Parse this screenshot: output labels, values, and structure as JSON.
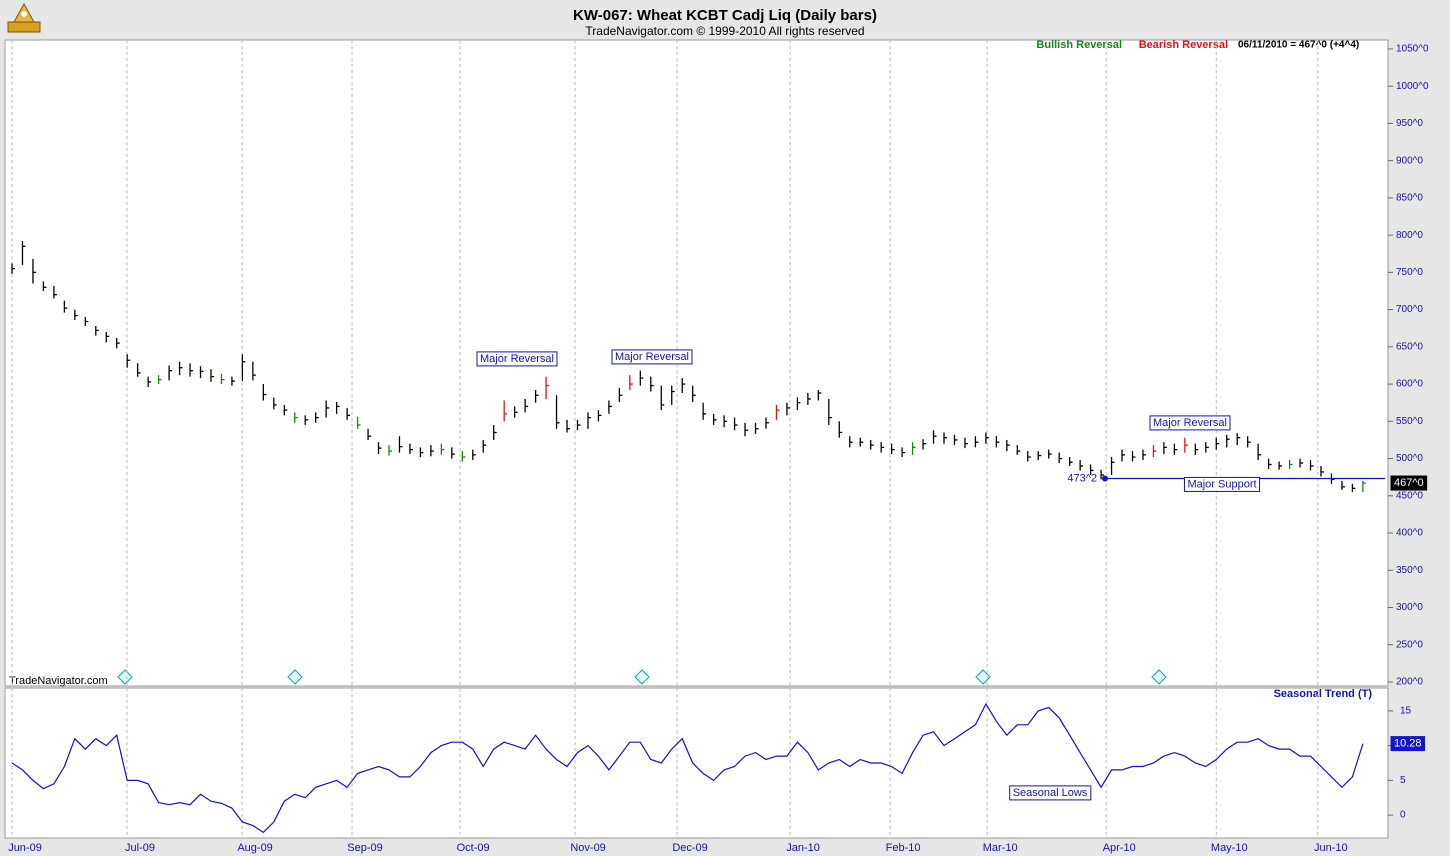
{
  "chart_data": {
    "type": "ohlc",
    "title": "KW-067:  Wheat KCBT Cadj Liq  (Daily bars)",
    "subtitle": "TradeNavigator.com © 1999-2010 All rights reserved",
    "watermark": "TradeNavigator.com",
    "legend": [
      {
        "name": "Bullish Reversal",
        "color": "#108a10"
      },
      {
        "name": "Bearish Reversal",
        "color": "#e81010"
      }
    ],
    "last_quote": "06/11/2010 = 467^0 (+4^4)",
    "high": [
      762,
      792,
      768,
      738,
      732,
      712,
      700,
      690,
      678,
      670,
      662,
      640,
      628,
      610,
      612,
      625,
      630,
      628,
      624,
      620,
      614,
      610,
      640,
      630,
      600,
      582,
      572,
      562,
      558,
      562,
      578,
      576,
      568,
      556,
      540,
      522,
      518,
      530,
      520,
      515,
      518,
      520,
      515,
      510,
      512,
      525,
      545,
      578,
      570,
      580,
      592,
      610,
      585,
      552,
      552,
      562,
      565,
      578,
      595,
      612,
      618,
      610,
      598,
      598,
      608,
      598,
      575,
      560,
      558,
      555,
      548,
      548,
      555,
      572,
      575,
      582,
      588,
      592,
      580,
      550,
      530,
      528,
      525,
      522,
      520,
      515,
      522,
      526,
      538,
      535,
      532,
      528,
      530,
      535,
      530,
      525,
      518,
      510,
      510,
      512,
      508,
      502,
      498,
      492,
      485,
      502,
      512,
      510,
      512,
      518,
      522,
      520,
      528,
      520,
      522,
      528,
      532,
      534,
      530,
      520,
      500,
      496,
      498,
      500,
      498,
      490,
      480,
      470,
      466,
      470
    ],
    "low": [
      748,
      760,
      735,
      725,
      715,
      696,
      686,
      678,
      665,
      656,
      648,
      622,
      610,
      596,
      600,
      605,
      612,
      610,
      608,
      603,
      600,
      598,
      604,
      605,
      578,
      566,
      558,
      548,
      545,
      548,
      555,
      560,
      552,
      540,
      525,
      506,
      504,
      508,
      506,
      502,
      503,
      505,
      500,
      496,
      498,
      508,
      525,
      550,
      555,
      562,
      575,
      580,
      540,
      535,
      538,
      540,
      550,
      560,
      576,
      592,
      598,
      590,
      565,
      572,
      588,
      576,
      552,
      545,
      542,
      538,
      530,
      533,
      540,
      552,
      558,
      565,
      572,
      578,
      545,
      528,
      515,
      516,
      512,
      508,
      506,
      502,
      505,
      512,
      520,
      520,
      518,
      514,
      515,
      520,
      515,
      510,
      505,
      496,
      498,
      500,
      494,
      490,
      484,
      478,
      472,
      478,
      496,
      496,
      498,
      502,
      506,
      505,
      508,
      505,
      508,
      512,
      515,
      518,
      515,
      498,
      486,
      485,
      486,
      488,
      484,
      476,
      466,
      458,
      455,
      455
    ],
    "close": [
      755,
      785,
      750,
      730,
      720,
      702,
      692,
      684,
      672,
      664,
      655,
      632,
      615,
      603,
      606,
      618,
      622,
      618,
      617,
      610,
      606,
      604,
      630,
      612,
      586,
      572,
      565,
      555,
      552,
      555,
      568,
      570,
      558,
      545,
      530,
      514,
      510,
      516,
      512,
      508,
      510,
      512,
      506,
      502,
      505,
      518,
      535,
      560,
      562,
      570,
      585,
      598,
      548,
      540,
      545,
      555,
      558,
      570,
      585,
      600,
      608,
      598,
      572,
      590,
      600,
      585,
      560,
      552,
      550,
      545,
      538,
      540,
      548,
      565,
      568,
      575,
      580,
      588,
      555,
      535,
      522,
      522,
      518,
      515,
      512,
      508,
      515,
      520,
      530,
      528,
      525,
      520,
      522,
      528,
      522,
      518,
      510,
      502,
      504,
      506,
      500,
      495,
      490,
      484,
      478,
      495,
      505,
      502,
      505,
      510,
      515,
      512,
      518,
      512,
      515,
      520,
      526,
      528,
      522,
      505,
      492,
      490,
      492,
      494,
      490,
      482,
      472,
      462,
      460,
      467
    ],
    "bar_colors": [
      "#000",
      "#000",
      "#000",
      "#000",
      "#000",
      "#000",
      "#000",
      "#000",
      "#000",
      "#000",
      "#000",
      "#000",
      "#000",
      "#000",
      "#108a10",
      "#000",
      "#000",
      "#000",
      "#000",
      "#000",
      "#108a10",
      "#000",
      "#000",
      "#000",
      "#000",
      "#000",
      "#000",
      "#108a10",
      "#000",
      "#000",
      "#000",
      "#000",
      "#000",
      "#108a10",
      "#000",
      "#000",
      "#108a10",
      "#000",
      "#000",
      "#000",
      "#000",
      "#108a10",
      "#000",
      "#108a10",
      "#000",
      "#000",
      "#000",
      "#e81010",
      "#000",
      "#000",
      "#000",
      "#e81010",
      "#000",
      "#000",
      "#000",
      "#000",
      "#000",
      "#000",
      "#000",
      "#e81010",
      "#000",
      "#000",
      "#000",
      "#000",
      "#000",
      "#000",
      "#000",
      "#000",
      "#000",
      "#000",
      "#000",
      "#000",
      "#000",
      "#e81010",
      "#000",
      "#000",
      "#000",
      "#000",
      "#000",
      "#000",
      "#000",
      "#000",
      "#000",
      "#000",
      "#000",
      "#000",
      "#108a10",
      "#000",
      "#000",
      "#000",
      "#000",
      "#000",
      "#000",
      "#000",
      "#000",
      "#000",
      "#000",
      "#000",
      "#000",
      "#000",
      "#000",
      "#000",
      "#000",
      "#000",
      "#000",
      "#000",
      "#000",
      "#000",
      "#000",
      "#e81010",
      "#000",
      "#000",
      "#e81010",
      "#000",
      "#000",
      "#000",
      "#000",
      "#000",
      "#000",
      "#000",
      "#000",
      "#000",
      "#108a10",
      "#000",
      "#000",
      "#000",
      "#000",
      "#000",
      "#000",
      "#108a10"
    ],
    "xlim": [
      -0.67,
      131.4
    ],
    "xticks": [
      {
        "value": 0,
        "label": "Jun-09"
      },
      {
        "value": 10.98,
        "label": "Jul-09"
      },
      {
        "value": 21.97,
        "label": "Aug-09"
      },
      {
        "value": 32.47,
        "label": "Sep-09"
      },
      {
        "value": 42.79,
        "label": "Oct-09"
      },
      {
        "value": 53.77,
        "label": "Nov-09"
      },
      {
        "value": 63.51,
        "label": "Dec-09"
      },
      {
        "value": 74.3,
        "label": "Jan-10"
      },
      {
        "value": 83.85,
        "label": "Feb-10"
      },
      {
        "value": 93.12,
        "label": "Mar-10"
      },
      {
        "value": 104.49,
        "label": "Apr-10"
      },
      {
        "value": 115,
        "label": "May-10"
      },
      {
        "value": 124.7,
        "label": "Jun-10"
      }
    ],
    "ylim": [
      194.6,
      1062
    ],
    "yticks": [
      {
        "value": 200,
        "label": "200^0"
      },
      {
        "value": 250,
        "label": "250^0"
      },
      {
        "value": 300,
        "label": "300^0"
      },
      {
        "value": 350,
        "label": "350^0"
      },
      {
        "value": 400,
        "label": "400^0"
      },
      {
        "value": 450,
        "label": "450^0"
      },
      {
        "value": 500,
        "label": "500^0"
      },
      {
        "value": 550,
        "label": "550^0"
      },
      {
        "value": 600,
        "label": "600^0"
      },
      {
        "value": 650,
        "label": "650^0"
      },
      {
        "value": 700,
        "label": "700^0"
      },
      {
        "value": 750,
        "label": "750^0"
      },
      {
        "value": 800,
        "label": "800^0"
      },
      {
        "value": 850,
        "label": "850^0"
      },
      {
        "value": 900,
        "label": "900^0"
      },
      {
        "value": 950,
        "label": "950^0"
      },
      {
        "value": 1000,
        "label": "1000^0"
      },
      {
        "value": 1050,
        "label": "1050^0"
      }
    ],
    "last_price_label": "467^0",
    "annotations": [
      "Major Reversal",
      "Major Reversal",
      "Major Reversal"
    ],
    "support": {
      "value": 473.2,
      "label": "473^2",
      "text": "Major Support"
    },
    "seasonal": {
      "type": "line",
      "name": "Seasonal Trend (T)",
      "color": "#1010d0",
      "values": [
        7.5,
        6.5,
        5,
        3.8,
        4.5,
        7,
        11,
        9.5,
        11,
        10,
        11.5,
        5,
        5,
        4.5,
        1.8,
        1.5,
        1.8,
        1.5,
        3,
        2,
        1.7,
        1,
        -1,
        -1.5,
        -2.5,
        -1,
        2,
        3,
        2.5,
        4,
        4.5,
        5,
        4,
        6,
        6.5,
        7,
        6.5,
        5.5,
        5.5,
        7,
        9,
        10,
        10.5,
        10.5,
        9.5,
        7,
        9.5,
        10.5,
        10,
        9.5,
        11.5,
        9.5,
        8,
        7,
        9,
        10,
        8.5,
        6.5,
        8.5,
        10.5,
        10.5,
        8,
        7.5,
        9.5,
        11,
        7.5,
        6,
        5,
        6.5,
        7,
        8.5,
        9,
        8,
        8.5,
        8.5,
        10.5,
        9,
        6.5,
        7.5,
        8,
        7,
        8,
        7.5,
        7.5,
        7,
        6,
        9,
        11.5,
        12,
        10,
        11,
        12,
        13,
        16,
        13.5,
        11.5,
        13,
        13,
        15,
        15.5,
        14,
        11.5,
        9,
        6.5,
        4,
        6.5,
        6.5,
        7,
        7,
        7.5,
        8.5,
        9,
        8.5,
        7.5,
        7,
        8,
        9.5,
        10.5,
        10.5,
        11,
        10,
        9.5,
        9.5,
        8.5,
        8.5,
        7,
        5.5,
        4,
        5.5,
        10.28
      ],
      "ylim": [
        -3.3,
        18.3
      ],
      "yticks": [
        0,
        5,
        10,
        15
      ],
      "annotation": "Seasonal Lows"
    }
  }
}
